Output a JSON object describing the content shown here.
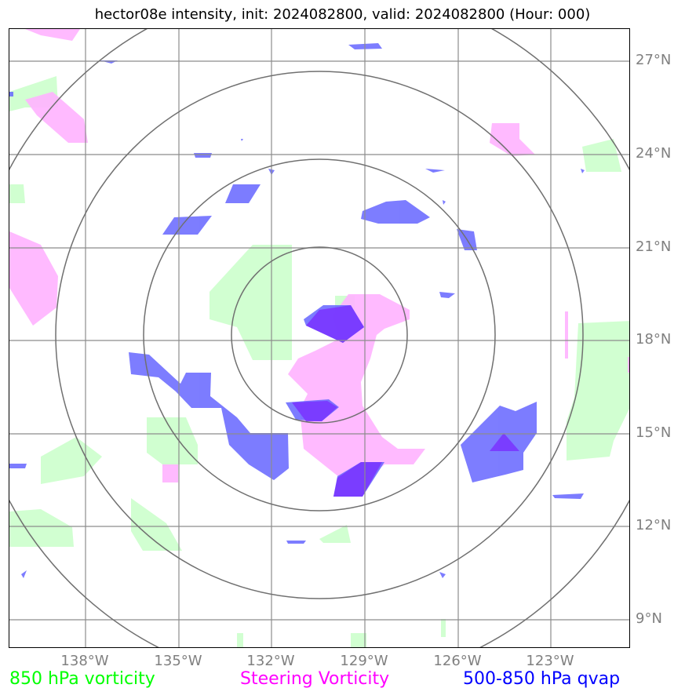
{
  "title": "hector08e intensity, init: 2024082800, valid: 2024082800 (Hour: 000)",
  "lat_labels": [
    "27°N",
    "24°N",
    "21°N",
    "18°N",
    "15°N",
    "12°N",
    "9°N"
  ],
  "lon_labels": [
    "138°W",
    "135°W",
    "132°W",
    "129°W",
    "126°W",
    "123°W"
  ],
  "legend": {
    "vorticity_850": {
      "label": "850 hPa vorticity",
      "color": "#00ff00"
    },
    "steering_vorticity": {
      "label": "Steering Vorticity",
      "color": "#ff00ff"
    },
    "qvap": {
      "label": "500-850 hPa qvap",
      "color": "#0000ff"
    }
  },
  "colors": {
    "green_fill": "#ccffcc",
    "pink_fill": "#ffb3ff",
    "blue_fill": "#6666ff",
    "dark_blue_fill": "#7a33ff",
    "grid": "#8c8c8c",
    "rings": "#707070"
  }
}
